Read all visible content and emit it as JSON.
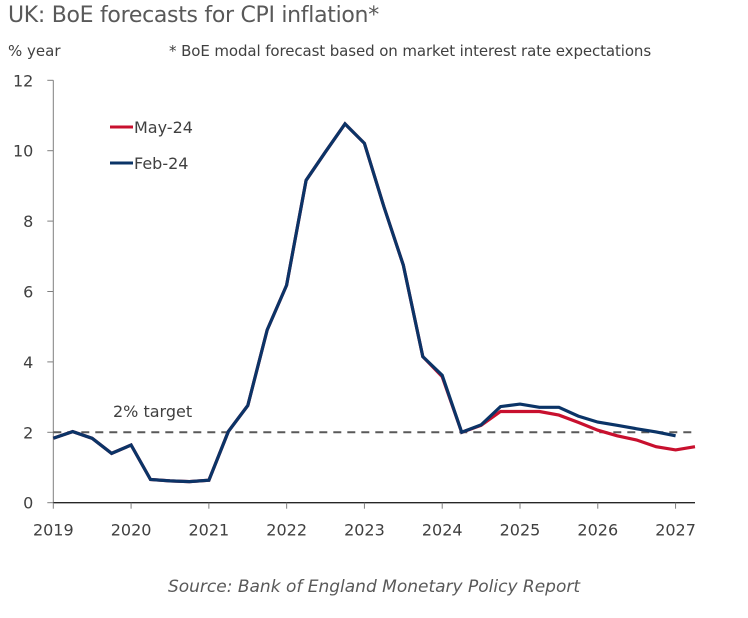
{
  "chart_data": {
    "type": "line",
    "title": "UK: BoE forecasts for CPI inflation*",
    "ylabel": "% year",
    "footnote": "* BoE modal forecast based on market interest rate expectations",
    "source": "Source: Bank of England Monetary Policy Report",
    "xlabel": "",
    "xlim": [
      2019,
      2027.25
    ],
    "ylim": [
      0,
      12
    ],
    "x_ticks": [
      2019,
      2020,
      2021,
      2022,
      2023,
      2024,
      2025,
      2026,
      2027
    ],
    "x_tick_labels": [
      "2019",
      "2020",
      "2021",
      "2022",
      "2023",
      "2024",
      "2025",
      "2026",
      "2027"
    ],
    "y_ticks": [
      0,
      2,
      4,
      6,
      8,
      10,
      12
    ],
    "y_tick_labels": [
      "0",
      "2",
      "4",
      "6",
      "8",
      "10",
      "12"
    ],
    "grid": false,
    "legend": {
      "position": "top-left",
      "entries": [
        "May-24",
        "Feb-24"
      ]
    },
    "reference_line": {
      "value": 2,
      "label": "2% target",
      "style": "dashed",
      "color": "#595959"
    },
    "series": [
      {
        "name": "May-24",
        "color": "#C8102E",
        "x": [
          2019.0,
          2019.25,
          2019.5,
          2019.75,
          2020.0,
          2020.25,
          2020.5,
          2020.75,
          2021.0,
          2021.25,
          2021.5,
          2021.75,
          2022.0,
          2022.25,
          2022.5,
          2022.75,
          2023.0,
          2023.25,
          2023.5,
          2023.75,
          2024.0,
          2024.25,
          2024.5,
          2024.75,
          2025.0,
          2025.25,
          2025.5,
          2025.75,
          2026.0,
          2026.25,
          2026.5,
          2026.75,
          2027.0,
          2027.25
        ],
        "values": [
          1.83,
          2.02,
          1.83,
          1.4,
          1.64,
          0.66,
          0.62,
          0.6,
          0.64,
          2.02,
          2.76,
          4.91,
          6.18,
          9.16,
          9.97,
          10.76,
          10.21,
          8.41,
          6.75,
          4.15,
          3.58,
          2.0,
          2.2,
          2.59,
          2.59,
          2.59,
          2.49,
          2.28,
          2.06,
          1.9,
          1.78,
          1.59,
          1.5,
          1.59
        ]
      },
      {
        "name": "Feb-24",
        "color": "#0B3467",
        "x": [
          2019.0,
          2019.25,
          2019.5,
          2019.75,
          2020.0,
          2020.25,
          2020.5,
          2020.75,
          2021.0,
          2021.25,
          2021.5,
          2021.75,
          2022.0,
          2022.25,
          2022.5,
          2022.75,
          2023.0,
          2023.25,
          2023.5,
          2023.75,
          2024.0,
          2024.25,
          2024.5,
          2024.75,
          2025.0,
          2025.25,
          2025.5,
          2025.75,
          2026.0,
          2026.25,
          2026.5,
          2026.75,
          2027.0
        ],
        "values": [
          1.83,
          2.02,
          1.83,
          1.4,
          1.64,
          0.66,
          0.62,
          0.6,
          0.64,
          2.02,
          2.76,
          4.91,
          6.18,
          9.16,
          9.97,
          10.76,
          10.21,
          8.41,
          6.75,
          4.15,
          3.62,
          2.0,
          2.21,
          2.73,
          2.8,
          2.71,
          2.71,
          2.46,
          2.29,
          2.2,
          2.1,
          2.01,
          1.9
        ]
      }
    ]
  }
}
